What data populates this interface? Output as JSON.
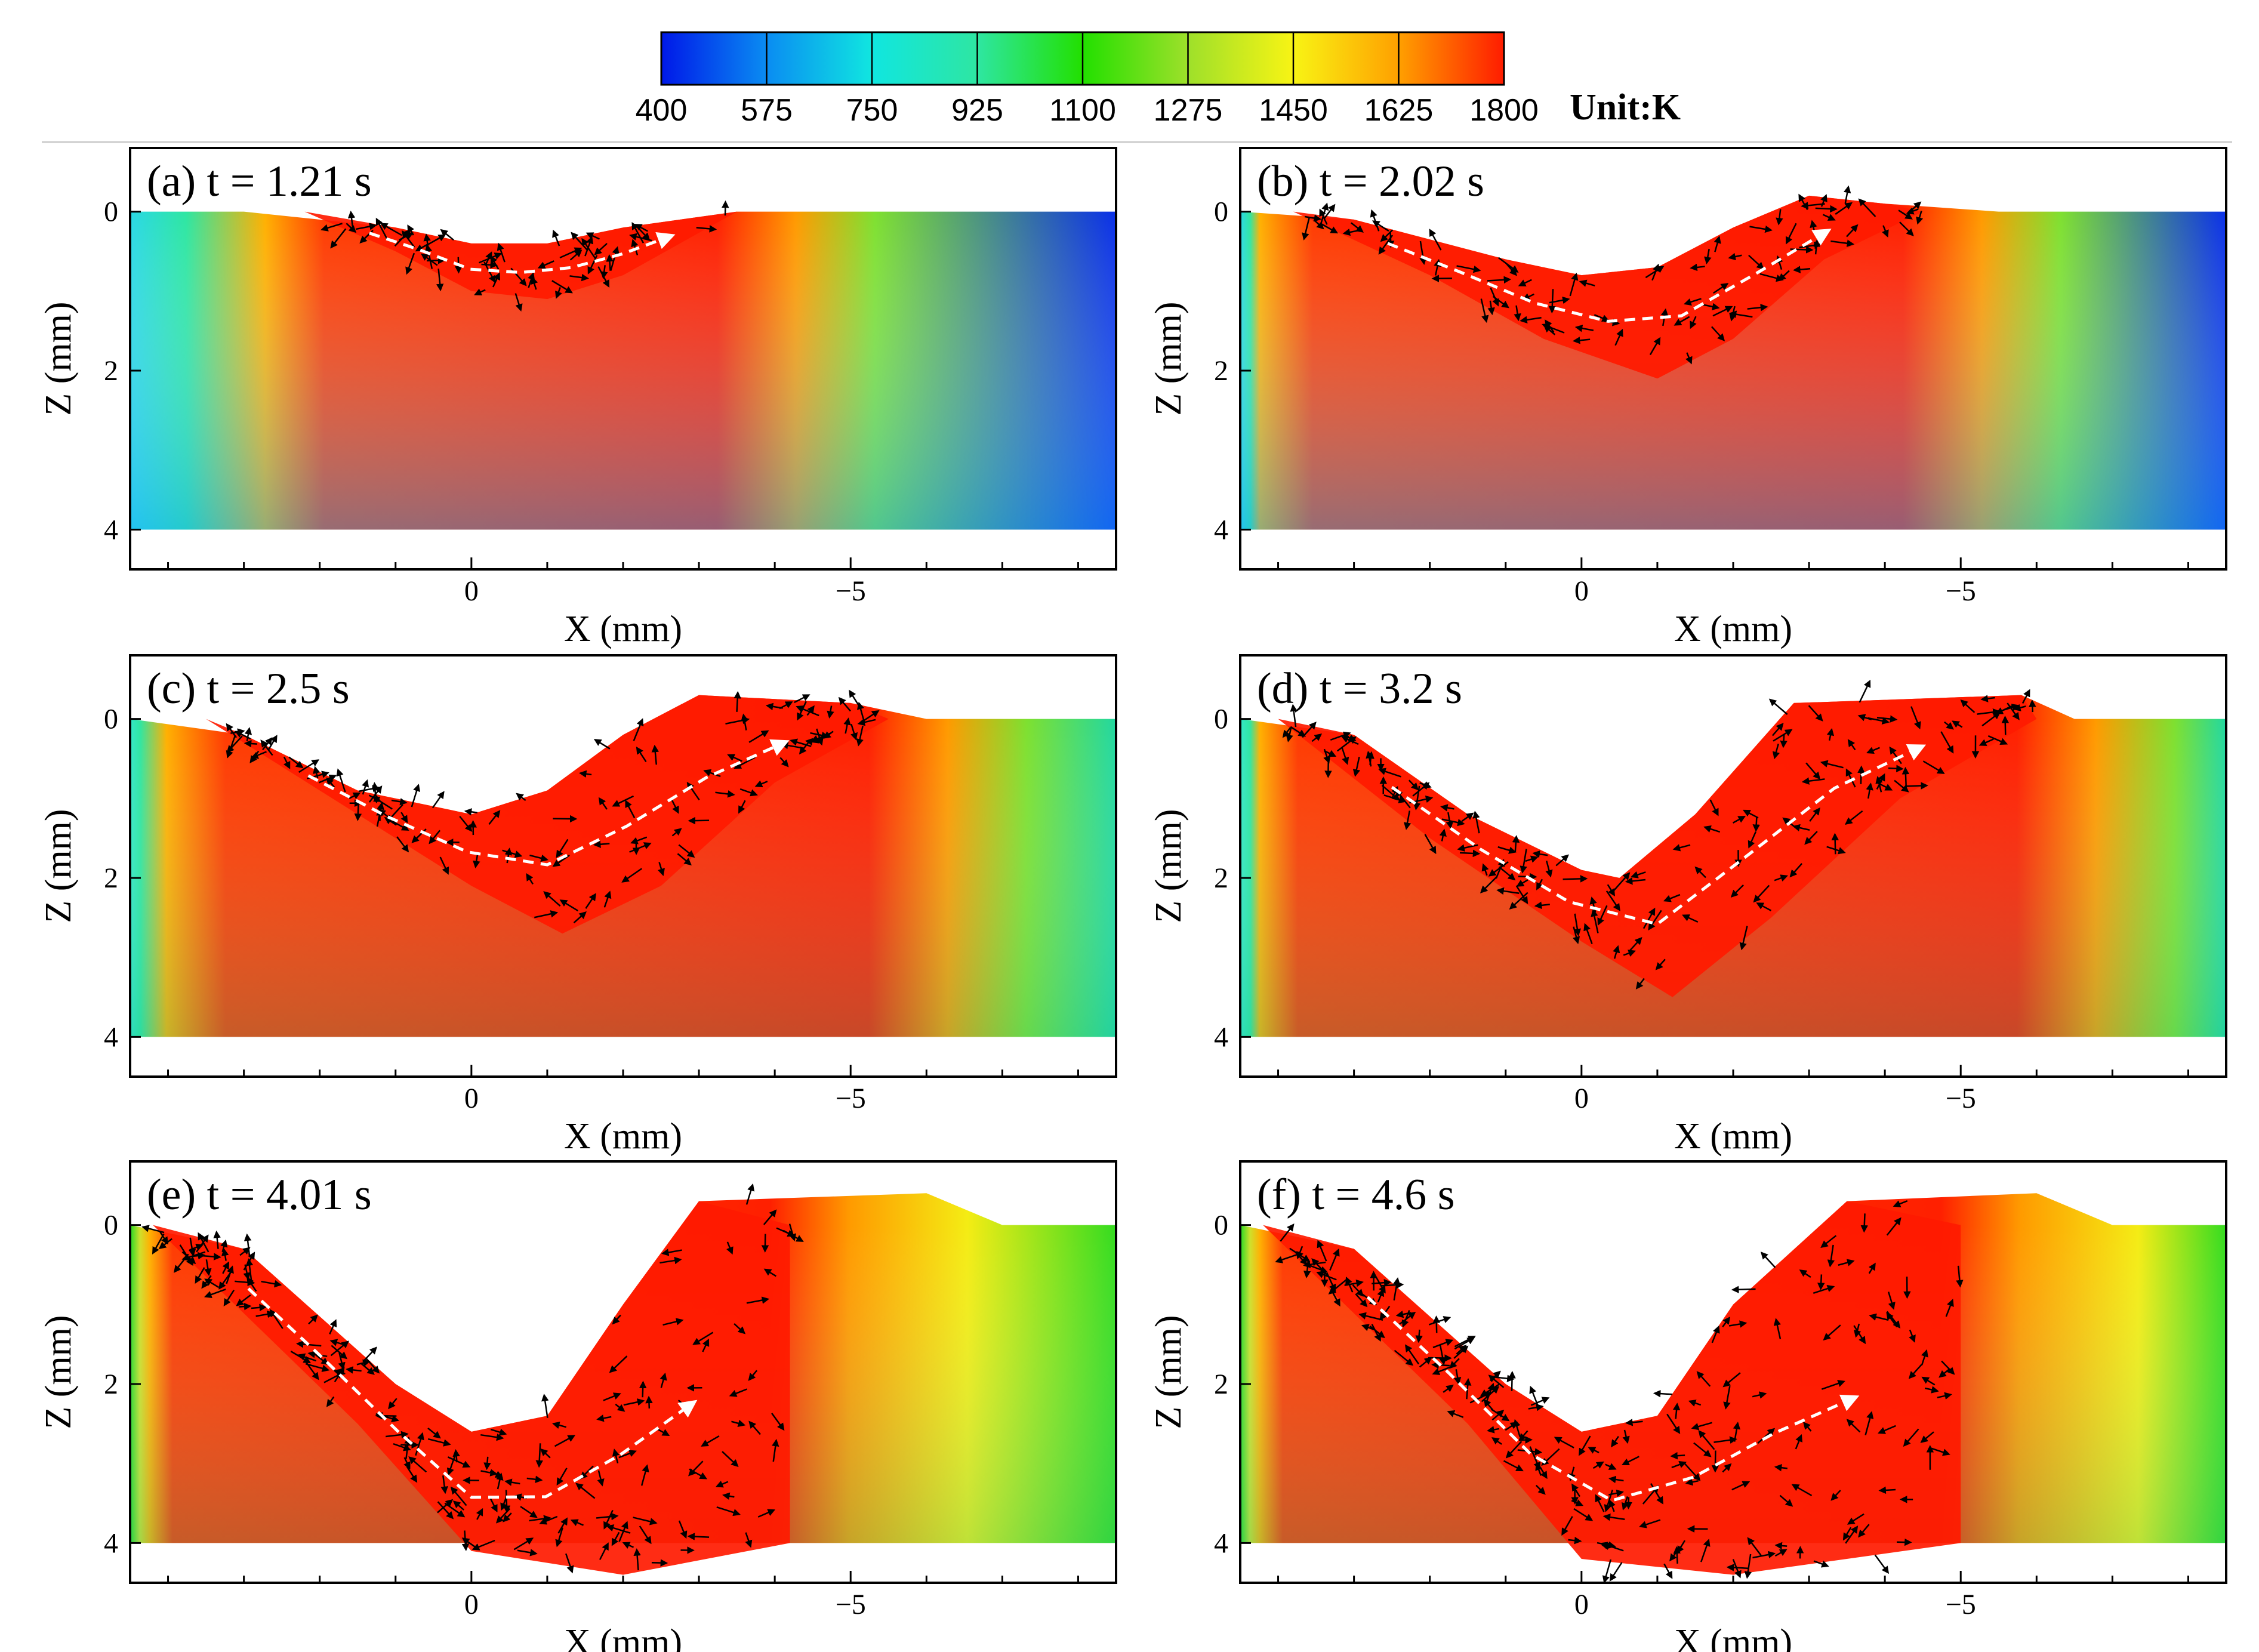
{
  "colorbar": {
    "ticks": [
      "400",
      "575",
      "750",
      "925",
      "1100",
      "1275",
      "1450",
      "1625",
      "1800"
    ],
    "unit_label": "Unit:K",
    "colors": [
      "#0018e8",
      "#0a8cf2",
      "#10e6e0",
      "#2ee6a2",
      "#22e000",
      "#9ee02a",
      "#f8f414",
      "#ffa000",
      "#ff1c00"
    ]
  },
  "chart_data": [
    {
      "type": "contour",
      "panel": "a",
      "title": "(a) t = 1.21 s",
      "xlabel": "X (mm)",
      "ylabel": "Z (mm)",
      "x_ticks": [
        "0",
        "−5"
      ],
      "z_ticks": [
        "0",
        "2",
        "4"
      ],
      "xlim": [
        4.5,
        -8.5
      ],
      "zlim": [
        -0.8,
        4.5
      ],
      "surface_z": [
        [
          4.5,
          0
        ],
        [
          3,
          0
        ],
        [
          1,
          0.2
        ],
        [
          0,
          0.4
        ],
        [
          -1,
          0.4
        ],
        [
          -2,
          0.2
        ],
        [
          -3.5,
          0
        ],
        [
          -8.5,
          0
        ]
      ],
      "melt_pool": [
        [
          2.2,
          0
        ],
        [
          1,
          0.5
        ],
        [
          0,
          1.0
        ],
        [
          -1,
          1.1
        ],
        [
          -2,
          0.8
        ],
        [
          -3.5,
          0
        ]
      ],
      "temperature_range_K": [
        400,
        1800
      ]
    },
    {
      "type": "contour",
      "panel": "b",
      "title": "(b) t = 2.02 s",
      "xlabel": "X (mm)",
      "ylabel": "Z (mm)",
      "x_ticks": [
        "0",
        "−5"
      ],
      "z_ticks": [
        "0",
        "2",
        "4"
      ],
      "xlim": [
        4.5,
        -8.5
      ],
      "zlim": [
        -0.8,
        4.5
      ],
      "surface_z": [
        [
          4.5,
          0
        ],
        [
          3,
          0.1
        ],
        [
          1,
          0.6
        ],
        [
          0,
          0.8
        ],
        [
          -1,
          0.7
        ],
        [
          -2,
          0.2
        ],
        [
          -3,
          -0.2
        ],
        [
          -4,
          -0.1
        ],
        [
          -5.5,
          0
        ],
        [
          -8.5,
          0
        ]
      ],
      "melt_pool": [
        [
          3.8,
          0
        ],
        [
          2,
          0.8
        ],
        [
          0.5,
          1.6
        ],
        [
          -1,
          2.1
        ],
        [
          -2,
          1.6
        ],
        [
          -3.2,
          0.6
        ],
        [
          -4.5,
          0
        ]
      ],
      "temperature_range_K": [
        400,
        1800
      ]
    },
    {
      "type": "contour",
      "panel": "c",
      "title": "(c) t = 2.5 s",
      "xlabel": "X (mm)",
      "ylabel": "Z (mm)",
      "x_ticks": [
        "0",
        "−5"
      ],
      "z_ticks": [
        "0",
        "2",
        "4"
      ],
      "xlim": [
        4.5,
        -8.5
      ],
      "zlim": [
        -0.8,
        4.5
      ],
      "surface_z": [
        [
          4.5,
          0
        ],
        [
          3,
          0.2
        ],
        [
          1.5,
          0.9
        ],
        [
          0,
          1.2
        ],
        [
          -1,
          0.9
        ],
        [
          -2,
          0.2
        ],
        [
          -3,
          -0.3
        ],
        [
          -5,
          -0.2
        ],
        [
          -6,
          0
        ],
        [
          -8.5,
          0
        ]
      ],
      "melt_pool": [
        [
          3.5,
          0
        ],
        [
          1.5,
          1.2
        ],
        [
          0,
          2.1
        ],
        [
          -1.2,
          2.7
        ],
        [
          -2.5,
          2.1
        ],
        [
          -4,
          0.8
        ],
        [
          -5.5,
          0
        ]
      ],
      "temperature_range_K": [
        400,
        1800
      ]
    },
    {
      "type": "contour",
      "panel": "d",
      "title": "(d) t = 3.2 s",
      "xlabel": "X (mm)",
      "ylabel": "Z (mm)",
      "x_ticks": [
        "0",
        "−5"
      ],
      "z_ticks": [
        "0",
        "2",
        "4"
      ],
      "xlim": [
        4.5,
        -8.5
      ],
      "zlim": [
        -0.8,
        4.5
      ],
      "surface_z": [
        [
          4.5,
          0
        ],
        [
          3,
          0.2
        ],
        [
          1.5,
          1.2
        ],
        [
          0,
          1.9
        ],
        [
          -0.5,
          2.0
        ],
        [
          -1.5,
          1.2
        ],
        [
          -2.8,
          -0.2
        ],
        [
          -5.8,
          -0.3
        ],
        [
          -6.5,
          0
        ],
        [
          -8.5,
          0
        ]
      ],
      "melt_pool": [
        [
          4,
          0
        ],
        [
          2,
          1.5
        ],
        [
          0,
          2.8
        ],
        [
          -1.2,
          3.5
        ],
        [
          -2.5,
          2.5
        ],
        [
          -4.2,
          1.0
        ],
        [
          -6,
          0
        ]
      ],
      "temperature_range_K": [
        400,
        1800
      ]
    },
    {
      "type": "contour",
      "panel": "e",
      "title": "(e) t = 4.01 s",
      "xlabel": "X (mm)",
      "ylabel": "Z (mm)",
      "x_ticks": [
        "0",
        "−5"
      ],
      "z_ticks": [
        "0",
        "2",
        "4"
      ],
      "xlim": [
        4.5,
        -8.5
      ],
      "zlim": [
        -0.8,
        4.5
      ],
      "surface_z": [
        [
          4.5,
          0
        ],
        [
          3,
          0.3
        ],
        [
          1,
          2.0
        ],
        [
          0,
          2.6
        ],
        [
          -1,
          2.4
        ],
        [
          -2,
          1.0
        ],
        [
          -3,
          -0.3
        ],
        [
          -6,
          -0.4
        ],
        [
          -7,
          0
        ],
        [
          -8.5,
          0
        ]
      ],
      "melt_pool": [
        [
          4.2,
          0
        ],
        [
          1.5,
          2.5
        ],
        [
          0,
          4.1
        ],
        [
          -2,
          4.4
        ],
        [
          -4.2,
          4.0
        ],
        [
          -4.2,
          0
        ]
      ],
      "temperature_range_K": [
        400,
        1800
      ]
    },
    {
      "type": "contour",
      "panel": "f",
      "title": "(f) t = 4.6 s",
      "xlabel": "X (mm)",
      "ylabel": "Z (mm)",
      "x_ticks": [
        "0",
        "−5"
      ],
      "z_ticks": [
        "0",
        "2",
        "4"
      ],
      "xlim": [
        4.5,
        -8.5
      ],
      "zlim": [
        -0.8,
        4.5
      ],
      "surface_z": [
        [
          4.5,
          0
        ],
        [
          3,
          0.3
        ],
        [
          1,
          2.0
        ],
        [
          0,
          2.6
        ],
        [
          -1,
          2.4
        ],
        [
          -2,
          1.0
        ],
        [
          -3.5,
          -0.3
        ],
        [
          -6,
          -0.4
        ],
        [
          -7,
          0
        ],
        [
          -8.5,
          0
        ]
      ],
      "melt_pool": [
        [
          4.2,
          0
        ],
        [
          1.5,
          2.5
        ],
        [
          0,
          4.2
        ],
        [
          -2,
          4.4
        ],
        [
          -5,
          4.0
        ],
        [
          -5,
          0
        ]
      ],
      "temperature_range_K": [
        400,
        1800
      ]
    }
  ]
}
